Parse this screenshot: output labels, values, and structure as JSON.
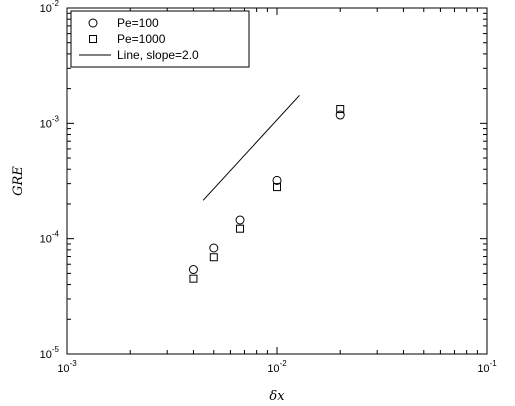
{
  "chart_data": {
    "type": "scatter",
    "title": "",
    "xlabel": "δx",
    "ylabel": "GRE",
    "xscale": "log",
    "yscale": "log",
    "xlim": [
      0.001,
      0.1
    ],
    "ylim": [
      1e-05,
      0.01
    ],
    "x_tick_labels": [
      {
        "base": "10",
        "exp": "-3"
      },
      {
        "base": "10",
        "exp": "-2"
      },
      {
        "base": "10",
        "exp": "-1"
      }
    ],
    "y_tick_labels": [
      {
        "base": "10",
        "exp": "-5"
      },
      {
        "base": "10",
        "exp": "-4"
      },
      {
        "base": "10",
        "exp": "-3"
      },
      {
        "base": "10",
        "exp": "-2"
      }
    ],
    "grid": false,
    "legend_position": "top-left",
    "series": [
      {
        "name": "Pe=100",
        "marker": "circle",
        "x": [
          0.004,
          0.005,
          0.006667,
          0.01,
          0.02
        ],
        "y": [
          5.4e-05,
          8.3e-05,
          0.000145,
          0.00032,
          0.00118
        ]
      },
      {
        "name": "Pe=1000",
        "marker": "square",
        "x": [
          0.004,
          0.005,
          0.006667,
          0.01,
          0.02
        ],
        "y": [
          4.5e-05,
          6.9e-05,
          0.000122,
          0.00028,
          0.00133
        ]
      },
      {
        "name": "Line, slope=2.0",
        "marker": "line",
        "x": [
          0.00445,
          0.0128
        ],
        "y": [
          0.000215,
          0.00175
        ]
      }
    ]
  }
}
